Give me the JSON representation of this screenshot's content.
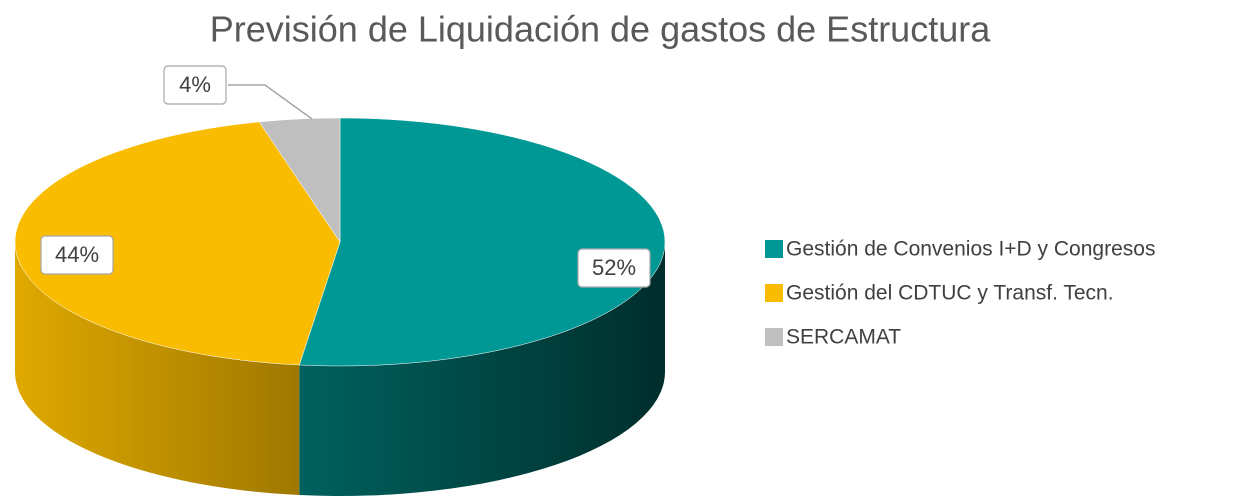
{
  "chart_data": {
    "type": "pie3d",
    "title": "Previsión de Liquidación de gastos de Estructura",
    "categories": [
      "Gestión de Convenios I+D y Congresos",
      "Gestión del CDTUC y Transf. Tecn.",
      "SERCAMAT"
    ],
    "values": [
      52,
      44,
      4
    ],
    "value_labels": [
      "52%",
      "44%",
      "4%"
    ],
    "colors": [
      "#009894",
      "#F9BC00",
      "#BFBFBF"
    ],
    "legend": "right"
  }
}
